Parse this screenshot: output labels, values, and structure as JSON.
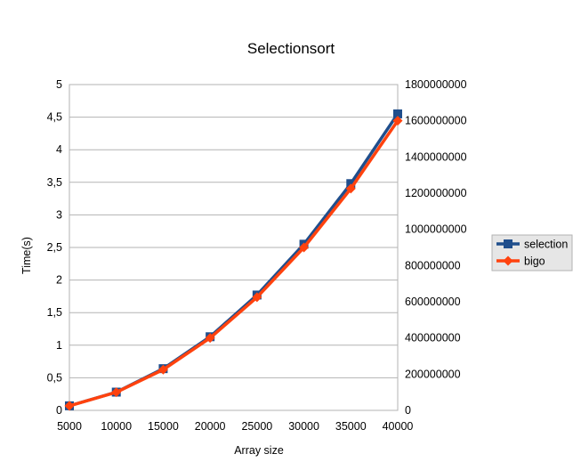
{
  "chart_data": {
    "type": "line",
    "title": "Selectionsort",
    "xlabel": "Array size",
    "ylabel": "Time(s)",
    "y2label": "",
    "categories": [
      "5000",
      "10000",
      "15000",
      "20000",
      "25000",
      "30000",
      "35000",
      "40000"
    ],
    "x": [
      5000,
      10000,
      15000,
      20000,
      25000,
      30000,
      35000,
      40000
    ],
    "ylim": [
      0,
      5
    ],
    "y2lim": [
      0,
      1800000000
    ],
    "yticks": [
      "0",
      "0,5",
      "1",
      "1,5",
      "2",
      "2,5",
      "3",
      "3,5",
      "4",
      "4,5",
      "5"
    ],
    "y2ticks": [
      "0",
      "200000000",
      "400000000",
      "600000000",
      "800000000",
      "1000000000",
      "1200000000",
      "1400000000",
      "1600000000",
      "1800000000"
    ],
    "grid": "horizontal",
    "legend_position": "right",
    "series": [
      {
        "name": "selection",
        "axis": "left",
        "color": "#1f4e8c",
        "marker": "square",
        "values": [
          0.07,
          0.28,
          0.64,
          1.13,
          1.77,
          2.55,
          3.48,
          4.55
        ]
      },
      {
        "name": "bigo",
        "axis": "right",
        "color": "#ff420e",
        "marker": "diamond",
        "values": [
          25000000,
          100000000,
          225000000,
          400000000,
          625000000,
          900000000,
          1225000000,
          1600000000
        ]
      }
    ]
  }
}
